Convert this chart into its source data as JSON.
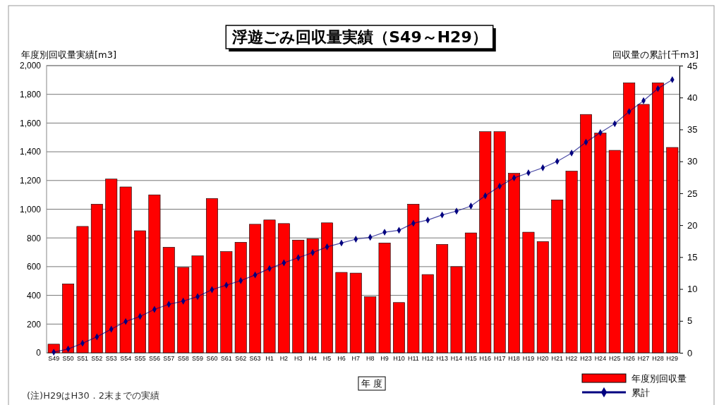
{
  "chart_data": {
    "type": "bar",
    "title": "浮遊ごみ回収量実績（S49～H29）",
    "xlabel": "年 度",
    "ylabel": "年度別回収量実績[m3]",
    "y2label": "回収量の累計[千m3]",
    "categories": [
      "S49",
      "S50",
      "S51",
      "S52",
      "S53",
      "S54",
      "S55",
      "S56",
      "S57",
      "S58",
      "S59",
      "S60",
      "S61",
      "S62",
      "S63",
      "H1",
      "H2",
      "H3",
      "H4",
      "H5",
      "H6",
      "H7",
      "H8",
      "H9",
      "H10",
      "H11",
      "H12",
      "H13",
      "H14",
      "H15",
      "H16",
      "H17",
      "H18",
      "H19",
      "H20",
      "H21",
      "H22",
      "H23",
      "H24",
      "H25",
      "H26",
      "H27",
      "H28",
      "H29"
    ],
    "series": [
      {
        "name": "年度別回収量",
        "color": "#ff0000",
        "values": [
          60,
          480,
          880,
          1035,
          1210,
          1155,
          850,
          1100,
          735,
          595,
          675,
          1075,
          705,
          770,
          895,
          925,
          900,
          785,
          795,
          905,
          560,
          555,
          390,
          765,
          350,
          1035,
          545,
          755,
          600,
          835,
          1540,
          1540,
          1250,
          840,
          775,
          1065,
          1265,
          1660,
          1530,
          1410,
          1880,
          1730,
          1880,
          1430
        ]
      },
      {
        "name": "累計",
        "type": "line",
        "axis": "y2",
        "color": "#000080",
        "marker": "diamond",
        "line_style": "solid",
        "values": [
          0.1,
          0.6,
          1.5,
          2.5,
          3.7,
          4.9,
          5.7,
          6.8,
          7.6,
          8.1,
          8.8,
          9.9,
          10.6,
          11.3,
          12.2,
          13.2,
          14.1,
          14.9,
          15.7,
          16.6,
          17.2,
          17.8,
          18.1,
          18.9,
          19.2,
          20.3,
          20.8,
          21.6,
          22.2,
          23.0,
          24.6,
          26.1,
          27.4,
          28.2,
          29.0,
          30.0,
          31.3,
          33.0,
          34.5,
          35.9,
          37.8,
          39.5,
          41.4,
          42.8
        ]
      }
    ],
    "ylim": [
      0,
      2000
    ],
    "yticks": [
      0,
      200,
      400,
      600,
      800,
      {
        "value": 1000,
        "label": "1,000"
      },
      {
        "value": 1200,
        "label": "1,200"
      },
      {
        "value": 1400,
        "label": "1,400"
      },
      {
        "value": 1600,
        "label": "1,600"
      },
      {
        "value": 1800,
        "label": "1,800"
      },
      {
        "value": 2000,
        "label": "2,000"
      }
    ],
    "y2lim": [
      0,
      45
    ],
    "y2ticks": [
      0,
      5,
      10,
      15,
      20,
      25,
      30,
      35,
      40,
      45
    ],
    "grid": "y",
    "legend": "bottom right",
    "annotations": [
      "(注)H29はH30．2末までの実績"
    ]
  }
}
